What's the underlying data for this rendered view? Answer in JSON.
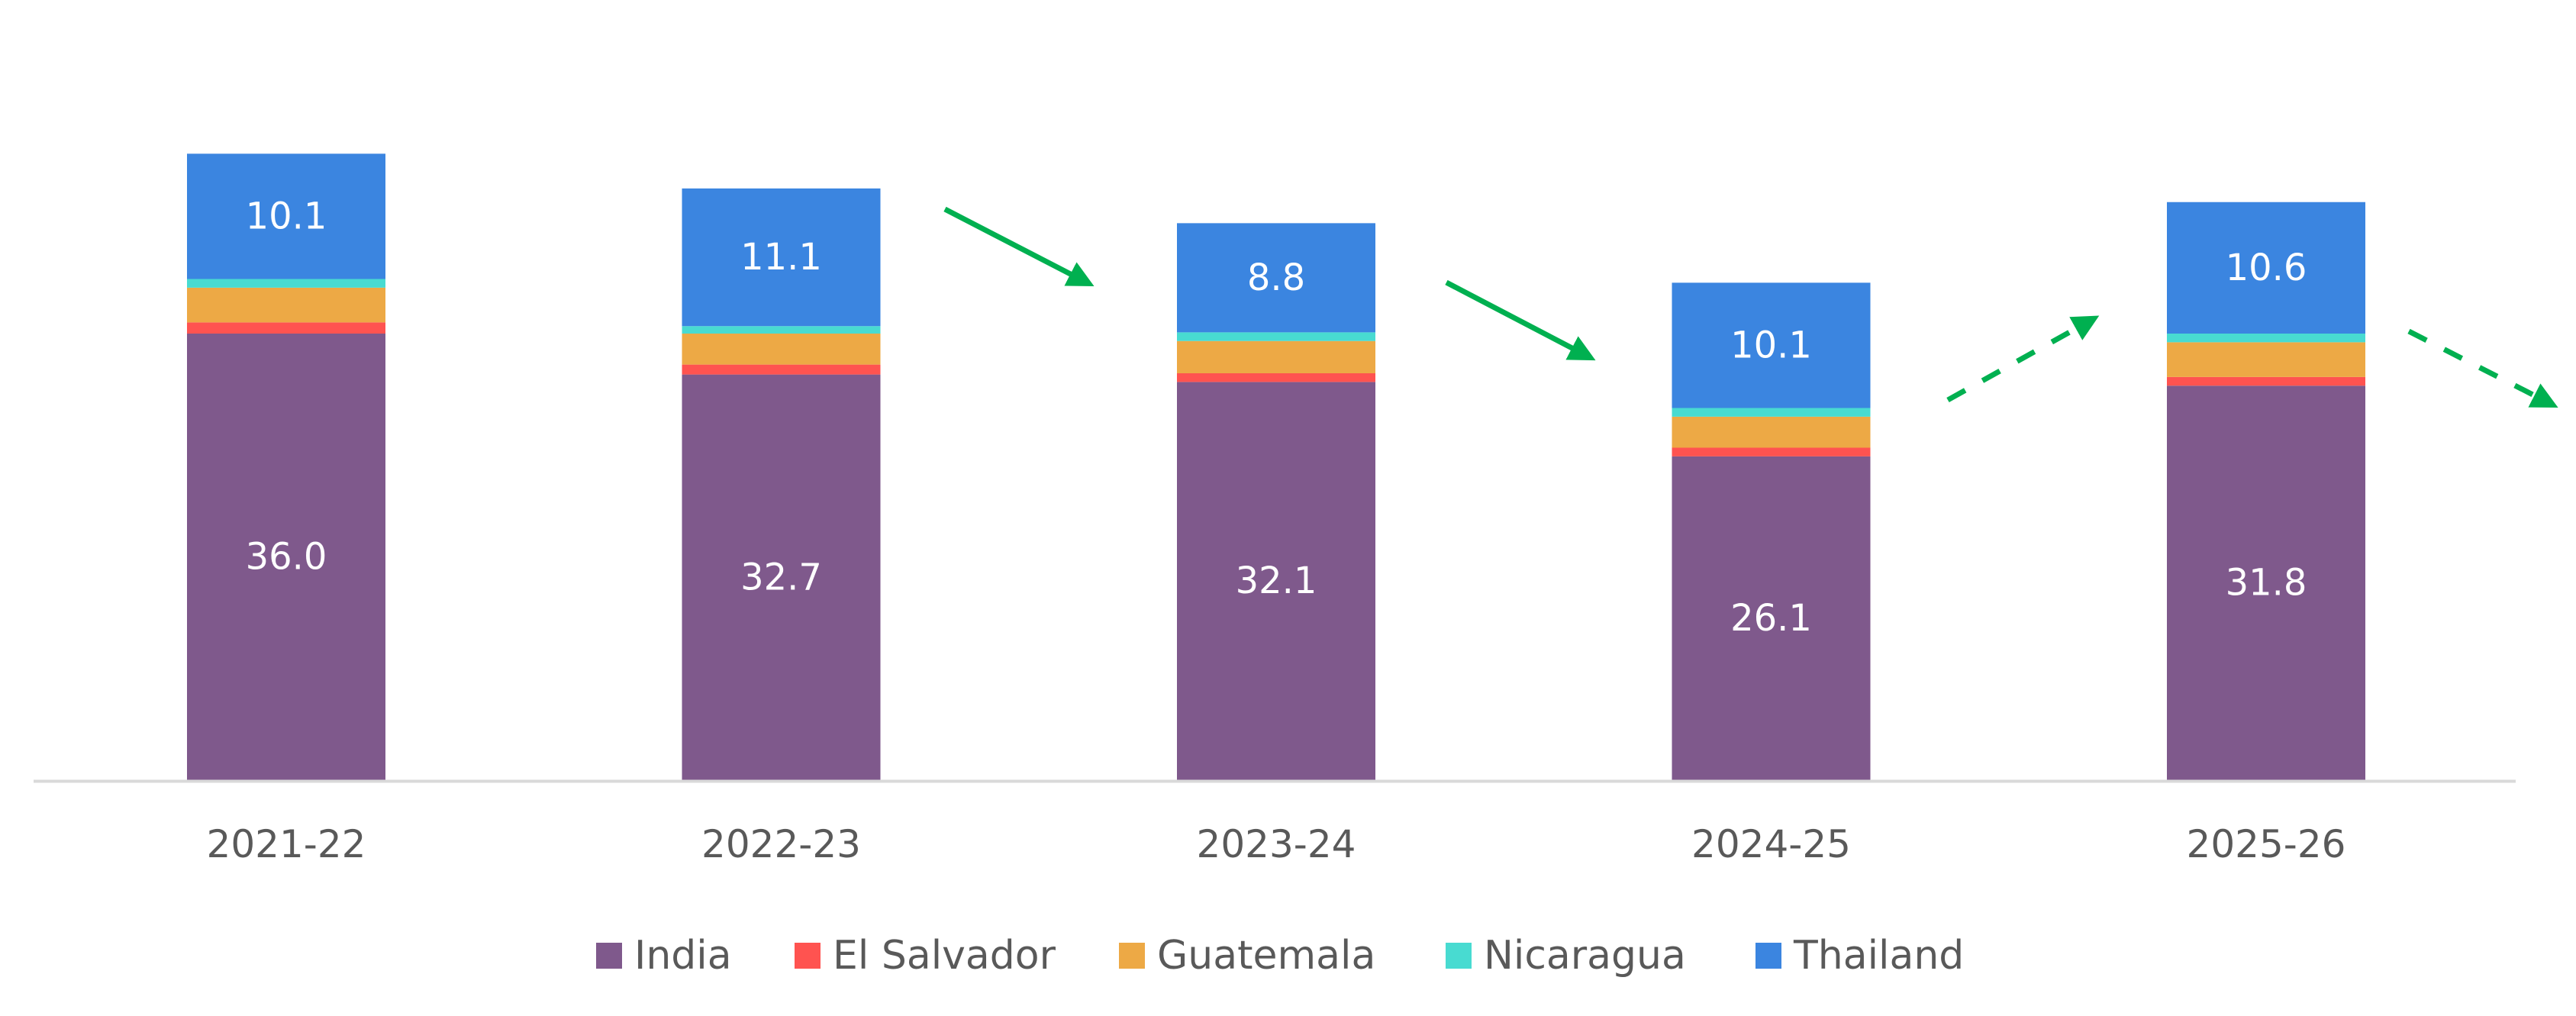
{
  "chart_data": {
    "type": "bar",
    "stacked": true,
    "title": "",
    "xlabel": "",
    "ylabel": "",
    "ylim": [
      0,
      51
    ],
    "grid": false,
    "legend_position": "bottom",
    "categories": [
      "2021-22",
      "2022-23",
      "2023-24",
      "2024-25",
      "2025-26"
    ],
    "series": [
      {
        "name": "India",
        "color": "#7F598C",
        "values": [
          36.0,
          32.7,
          32.1,
          26.1,
          31.8
        ],
        "show_labels": true
      },
      {
        "name": "El Salvador",
        "color": "#FF5350",
        "values": [
          0.9,
          0.8,
          0.7,
          0.7,
          0.7
        ],
        "show_labels": false
      },
      {
        "name": "Guatemala",
        "color": "#EDA945",
        "values": [
          2.8,
          2.5,
          2.6,
          2.5,
          2.8
        ],
        "show_labels": false
      },
      {
        "name": "Nicaragua",
        "color": "#48DBD1",
        "values": [
          0.7,
          0.6,
          0.7,
          0.7,
          0.7
        ],
        "show_labels": false
      },
      {
        "name": "Thailand",
        "color": "#3B85E0",
        "values": [
          10.1,
          11.1,
          8.8,
          10.1,
          10.6
        ],
        "show_labels": true
      }
    ],
    "data_labels": {
      "India": [
        "36.0",
        "32.7",
        "32.1",
        "26.1",
        "31.8"
      ],
      "Thailand": [
        "10.1",
        "11.1",
        "8.8",
        "10.1",
        "10.6"
      ]
    },
    "annotations": [
      {
        "type": "trend-arrow",
        "direction": "down",
        "style": "solid",
        "between": [
          "2022-23",
          "2023-24"
        ],
        "color": "#00B050"
      },
      {
        "type": "trend-arrow",
        "direction": "down",
        "style": "solid",
        "between": [
          "2023-24",
          "2024-25"
        ],
        "color": "#00B050"
      },
      {
        "type": "trend-arrow",
        "direction": "up",
        "style": "dashed",
        "between": [
          "2024-25",
          "2025-26"
        ],
        "color": "#00B050"
      },
      {
        "type": "trend-arrow",
        "direction": "down",
        "style": "dashed",
        "after": "2025-26",
        "color": "#00B050"
      }
    ],
    "axis_color": "#D9D9D9",
    "text_color": "#595959"
  }
}
